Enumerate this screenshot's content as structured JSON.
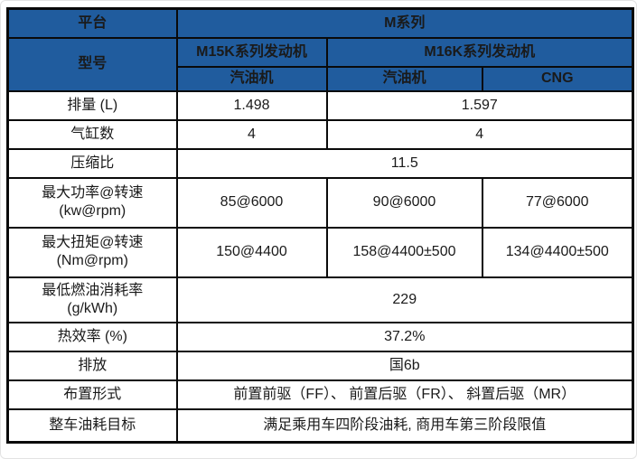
{
  "colors": {
    "header_bg": "#205c9e",
    "header_text": "#ffffff",
    "body_text": "#1a1a1a",
    "border": "#0a0a0a"
  },
  "header": {
    "platform_label": "平台",
    "platform_value": "M系列",
    "model_label": "型号",
    "series_m15k": "M15K系列发动机",
    "series_m16k": "M16K系列发动机",
    "m15k_fuel": "汽油机",
    "m16k_fuel_gasoline": "汽油机",
    "m16k_fuel_cng": "CNG"
  },
  "rows": {
    "displacement": {
      "label": "排量 (L)",
      "v1": "1.498",
      "v2": "1.597"
    },
    "cylinders": {
      "label": "气缸数",
      "v1": "4",
      "v2": "4"
    },
    "compression": {
      "label": "压缩比",
      "v": "11.5"
    },
    "power": {
      "label_line1": "最大功率@转速",
      "label_line2": "(kw@rpm)",
      "v1": "85@6000",
      "v2": "90@6000",
      "v3": "77@6000"
    },
    "torque": {
      "label_line1": "最大扭矩@转速",
      "label_line2": "(Nm@rpm)",
      "v1": "150@4400",
      "v2": "158@4400±500",
      "v3": "134@4400±500"
    },
    "min_fuel_rate": {
      "label_line1": "最低燃油消耗率",
      "label_line2": "(g/kWh)",
      "v": "229"
    },
    "thermal_efficiency": {
      "label": "热效率 (%)",
      "v": "37.2%"
    },
    "emission": {
      "label": "排放",
      "v": "国6b"
    },
    "layout_form": {
      "label": "布置形式",
      "v": "前置前驱（FF）、 前置后驱（FR）、 斜置后驱（MR）"
    },
    "vehicle_fuel_target": {
      "label": "整车油耗目标",
      "v": "满足乘用车四阶段油耗, 商用车第三阶段限值"
    }
  }
}
